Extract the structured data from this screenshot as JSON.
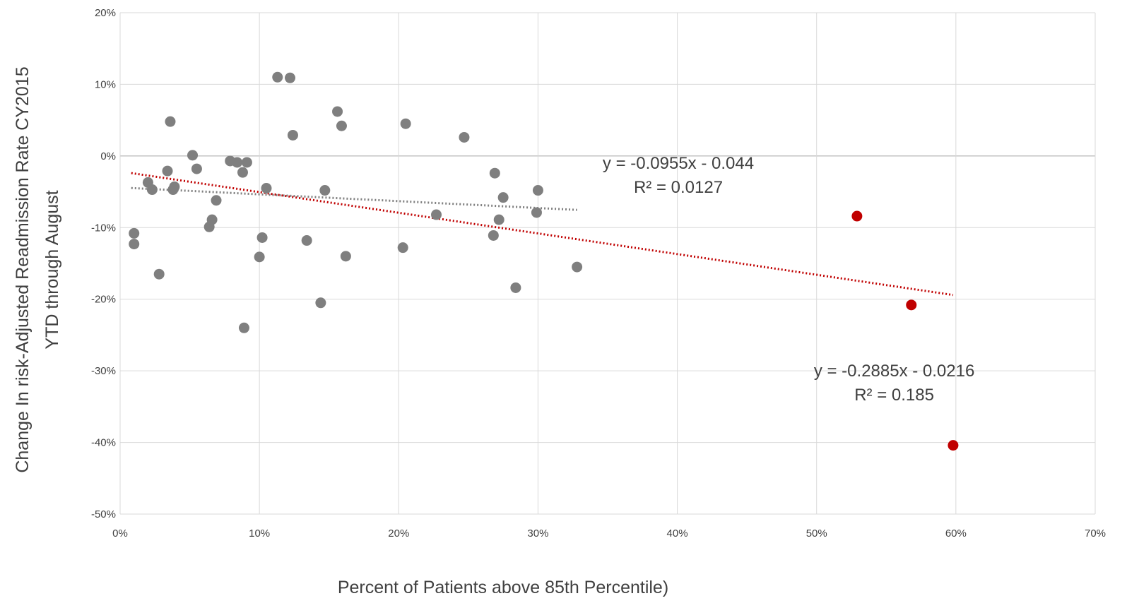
{
  "chart_data": {
    "type": "scatter",
    "xlabel": "Percent of Patients above 85th Percentile)",
    "ylabel_lines": [
      "Change In risk-Adjusted Readmission Rate CY2015",
      "YTD through August"
    ],
    "xlim": [
      0,
      0.7
    ],
    "ylim": [
      -0.5,
      0.2
    ],
    "x_ticks": [
      0,
      0.1,
      0.2,
      0.3,
      0.4,
      0.5,
      0.6,
      0.7
    ],
    "x_tick_labels": [
      "0%",
      "10%",
      "20%",
      "30%",
      "40%",
      "50%",
      "60%",
      "70%"
    ],
    "y_ticks": [
      0.2,
      0.1,
      0,
      -0.1,
      -0.2,
      -0.3,
      -0.4,
      -0.5
    ],
    "y_tick_labels": [
      "20%",
      "10%",
      "0%",
      "-10%",
      "-20%",
      "-30%",
      "-40%",
      "-50%"
    ],
    "grid": true,
    "legend": "none",
    "colors": {
      "gray_points": "#7f7f7f",
      "red_points": "#c00000",
      "gray_trend": "#7f7f7f",
      "red_trend": "#c00000",
      "grid": "#d9d9d9",
      "zero_line": "#a6a6a6"
    },
    "series": [
      {
        "color": "#7f7f7f",
        "points": [
          [
            0.01,
            -0.108
          ],
          [
            0.01,
            -0.123
          ],
          [
            0.02,
            -0.037
          ],
          [
            0.023,
            -0.047
          ],
          [
            0.028,
            -0.165
          ],
          [
            0.034,
            -0.021
          ],
          [
            0.036,
            0.048
          ],
          [
            0.038,
            -0.047
          ],
          [
            0.039,
            -0.043
          ],
          [
            0.052,
            0.001
          ],
          [
            0.055,
            -0.018
          ],
          [
            0.064,
            -0.099
          ],
          [
            0.066,
            -0.089
          ],
          [
            0.069,
            -0.062
          ],
          [
            0.079,
            -0.007
          ],
          [
            0.084,
            -0.009
          ],
          [
            0.088,
            -0.023
          ],
          [
            0.089,
            -0.24
          ],
          [
            0.091,
            -0.009
          ],
          [
            0.1,
            -0.141
          ],
          [
            0.102,
            -0.114
          ],
          [
            0.105,
            -0.045
          ],
          [
            0.113,
            0.11
          ],
          [
            0.122,
            0.109
          ],
          [
            0.124,
            0.029
          ],
          [
            0.134,
            -0.118
          ],
          [
            0.144,
            -0.205
          ],
          [
            0.147,
            -0.048
          ],
          [
            0.156,
            0.062
          ],
          [
            0.159,
            0.042
          ],
          [
            0.162,
            -0.14
          ],
          [
            0.203,
            -0.128
          ],
          [
            0.205,
            0.045
          ],
          [
            0.227,
            -0.082
          ],
          [
            0.247,
            0.026
          ],
          [
            0.268,
            -0.111
          ],
          [
            0.269,
            -0.024
          ],
          [
            0.272,
            -0.089
          ],
          [
            0.275,
            -0.058
          ],
          [
            0.284,
            -0.184
          ],
          [
            0.299,
            -0.079
          ],
          [
            0.3,
            -0.048
          ],
          [
            0.328,
            -0.155
          ]
        ]
      },
      {
        "color": "#c00000",
        "points": [
          [
            0.529,
            -0.084
          ],
          [
            0.568,
            -0.208
          ],
          [
            0.598,
            -0.404
          ]
        ]
      }
    ],
    "trendlines": [
      {
        "color": "#7f7f7f",
        "slope": -0.0955,
        "intercept": -0.044,
        "x_range": [
          0.008,
          0.328
        ]
      },
      {
        "color": "#c00000",
        "slope": -0.2885,
        "intercept": -0.0216,
        "x_range": [
          0.008,
          0.598
        ]
      }
    ],
    "annotations": [
      {
        "lines": [
          "y = -0.0955x - 0.044",
          "R² = 0.0127"
        ],
        "color": "#7f7f7f",
        "at": [
          0.35,
          0.0
        ]
      },
      {
        "lines": [
          "y = -0.2885x - 0.0216",
          "R² = 0.185"
        ],
        "color": "#c00000",
        "at": [
          0.505,
          -0.29
        ]
      }
    ]
  }
}
